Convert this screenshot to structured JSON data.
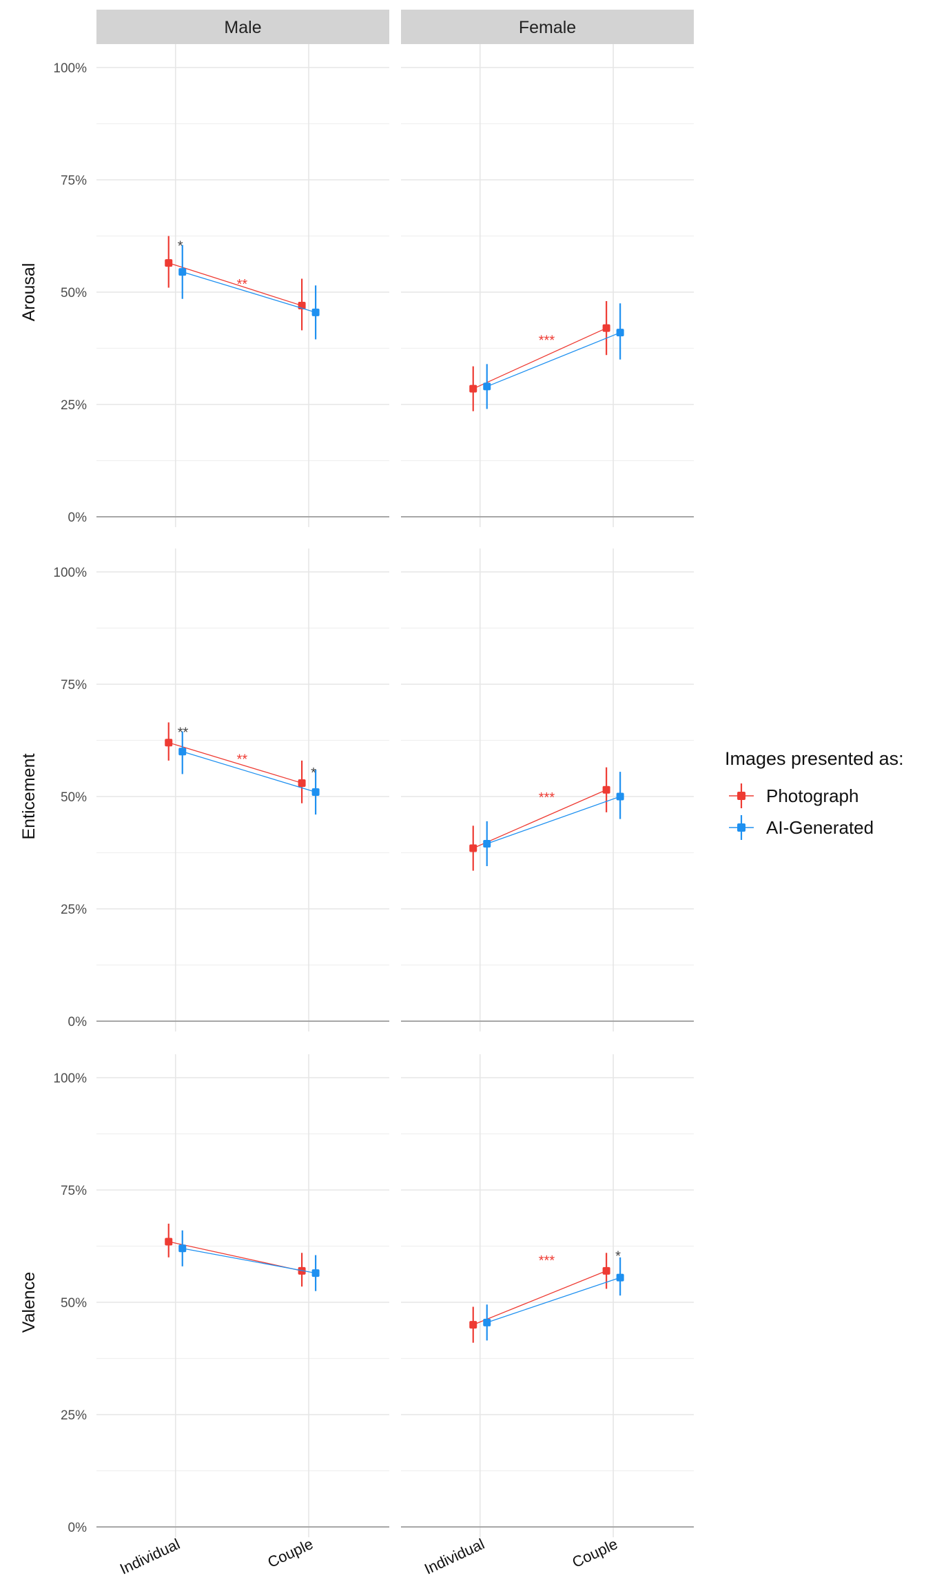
{
  "chart_data": {
    "type": "line",
    "facet_columns": [
      "Male",
      "Female"
    ],
    "facet_rows": [
      "Arousal",
      "Enticement",
      "Valence"
    ],
    "categories": [
      "Individual",
      "Couple"
    ],
    "y_ticks": [
      "0%",
      "25%",
      "50%",
      "75%",
      "100%"
    ],
    "ylim": [
      0,
      100
    ],
    "grid": true,
    "legend": {
      "title": "Images presented as:",
      "position": "right",
      "entries": [
        {
          "name": "Photograph",
          "color": "#EE3B33"
        },
        {
          "name": "AI-Generated",
          "color": "#1E90F0"
        }
      ]
    },
    "panels": [
      {
        "row": "Arousal",
        "col": "Male",
        "series": [
          {
            "name": "Photograph",
            "values": [
              56.5,
              47.0
            ],
            "lower": [
              51.0,
              41.5
            ],
            "upper": [
              62.5,
              53.0
            ]
          },
          {
            "name": "AI-Generated",
            "values": [
              54.5,
              45.5
            ],
            "lower": [
              48.5,
              39.5
            ],
            "upper": [
              60.5,
              51.5
            ]
          }
        ],
        "annotations": [
          {
            "text": "*",
            "color": "#444444",
            "category": 0,
            "y": 60.5
          },
          {
            "text": "**",
            "color": "#EE3B33",
            "category": 0.5,
            "y": 52.0
          }
        ]
      },
      {
        "row": "Arousal",
        "col": "Female",
        "series": [
          {
            "name": "Photograph",
            "values": [
              28.5,
              42.0
            ],
            "lower": [
              23.5,
              36.0
            ],
            "upper": [
              33.5,
              48.0
            ]
          },
          {
            "name": "AI-Generated",
            "values": [
              29.0,
              41.0
            ],
            "lower": [
              24.0,
              35.0
            ],
            "upper": [
              34.0,
              47.5
            ]
          }
        ],
        "annotations": [
          {
            "text": "***",
            "color": "#EE3B33",
            "category": 0.5,
            "y": 39.5
          }
        ]
      },
      {
        "row": "Enticement",
        "col": "Male",
        "series": [
          {
            "name": "Photograph",
            "values": [
              62.0,
              53.0
            ],
            "lower": [
              58.0,
              48.5
            ],
            "upper": [
              66.5,
              58.0
            ]
          },
          {
            "name": "AI-Generated",
            "values": [
              60.0,
              51.0
            ],
            "lower": [
              55.0,
              46.0
            ],
            "upper": [
              64.5,
              56.0
            ]
          }
        ],
        "annotations": [
          {
            "text": "**",
            "color": "#444444",
            "category": 0,
            "y": 64.5
          },
          {
            "text": "**",
            "color": "#EE3B33",
            "category": 0.5,
            "y": 58.5
          },
          {
            "text": "*",
            "color": "#444444",
            "category": 1,
            "y": 55.5
          }
        ]
      },
      {
        "row": "Enticement",
        "col": "Female",
        "series": [
          {
            "name": "Photograph",
            "values": [
              38.5,
              51.5
            ],
            "lower": [
              33.5,
              46.5
            ],
            "upper": [
              43.5,
              56.5
            ]
          },
          {
            "name": "AI-Generated",
            "values": [
              39.5,
              50.0
            ],
            "lower": [
              34.5,
              45.0
            ],
            "upper": [
              44.5,
              55.5
            ]
          }
        ],
        "annotations": [
          {
            "text": "***",
            "color": "#EE3B33",
            "category": 0.5,
            "y": 50.0
          }
        ]
      },
      {
        "row": "Valence",
        "col": "Male",
        "series": [
          {
            "name": "Photograph",
            "values": [
              63.5,
              57.0
            ],
            "lower": [
              60.0,
              53.5
            ],
            "upper": [
              67.5,
              61.0
            ]
          },
          {
            "name": "AI-Generated",
            "values": [
              62.0,
              56.5
            ],
            "lower": [
              58.0,
              52.5
            ],
            "upper": [
              66.0,
              60.5
            ]
          }
        ],
        "annotations": []
      },
      {
        "row": "Valence",
        "col": "Female",
        "series": [
          {
            "name": "Photograph",
            "values": [
              45.0,
              57.0
            ],
            "lower": [
              41.0,
              53.0
            ],
            "upper": [
              49.0,
              61.0
            ]
          },
          {
            "name": "AI-Generated",
            "values": [
              45.5,
              55.5
            ],
            "lower": [
              41.5,
              51.5
            ],
            "upper": [
              49.5,
              60.0
            ]
          }
        ],
        "annotations": [
          {
            "text": "***",
            "color": "#EE3B33",
            "category": 0.5,
            "y": 59.5
          },
          {
            "text": "*",
            "color": "#444444",
            "category": 1,
            "y": 60.5
          }
        ]
      }
    ]
  }
}
